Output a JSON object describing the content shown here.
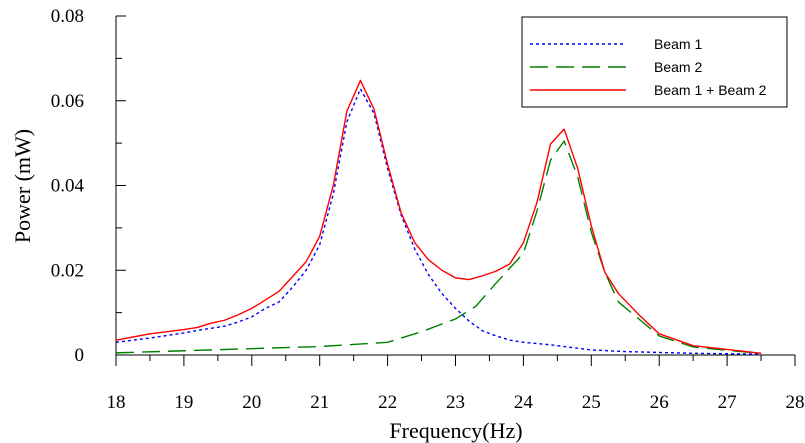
{
  "chart_data": {
    "type": "line",
    "title": "",
    "xlabel": "Frequency(Hz)",
    "ylabel": "Power (mW)",
    "xlim": [
      18,
      28
    ],
    "ylim": [
      0,
      0.08
    ],
    "x_ticks": [
      "18",
      "19",
      "20",
      "21",
      "22",
      "23",
      "24",
      "25",
      "26",
      "27",
      "28"
    ],
    "y_ticks": [
      "0",
      "0.02",
      "0.04",
      "0.06",
      "0.08"
    ],
    "grid": false,
    "legend_position": "top-right",
    "series": [
      {
        "name": "Beam 1",
        "color": "#0000ff",
        "style": "dotted",
        "x": [
          18,
          18.5,
          19,
          19.2,
          19.4,
          19.6,
          19.8,
          20,
          20.2,
          20.4,
          20.6,
          20.8,
          21,
          21.2,
          21.4,
          21.6,
          21.8,
          22,
          22.2,
          22.4,
          22.6,
          22.8,
          23,
          23.2,
          23.4,
          23.6,
          23.8,
          24,
          24.2,
          24.4,
          24.6,
          24.8,
          25,
          25.5,
          26,
          26.5,
          27,
          27.5
        ],
        "y": [
          0.003,
          0.004,
          0.0052,
          0.0058,
          0.0063,
          0.0068,
          0.0078,
          0.009,
          0.011,
          0.0125,
          0.016,
          0.02,
          0.026,
          0.038,
          0.055,
          0.0628,
          0.057,
          0.044,
          0.033,
          0.025,
          0.019,
          0.0145,
          0.011,
          0.008,
          0.0057,
          0.0045,
          0.0035,
          0.003,
          0.0027,
          0.0024,
          0.002,
          0.0016,
          0.0012,
          0.0008,
          0.0006,
          0.0004,
          0.0003,
          0.0002
        ]
      },
      {
        "name": "Beam 2",
        "color": "#008000",
        "style": "dashed",
        "x": [
          18,
          19,
          20,
          21,
          21.5,
          22,
          22.5,
          23,
          23.3,
          23.6,
          23.8,
          24,
          24.2,
          24.4,
          24.6,
          24.8,
          25,
          25.2,
          25.4,
          25.7,
          26,
          26.5,
          27,
          27.5
        ],
        "y": [
          0.0005,
          0.001,
          0.0015,
          0.002,
          0.0025,
          0.003,
          0.0055,
          0.0085,
          0.0115,
          0.017,
          0.0205,
          0.024,
          0.034,
          0.046,
          0.0505,
          0.042,
          0.029,
          0.0195,
          0.0125,
          0.0085,
          0.0045,
          0.0019,
          0.0011,
          0.0004
        ]
      },
      {
        "name": "Beam 1 + Beam 2",
        "color": "#ff0000",
        "style": "solid",
        "x": [
          18,
          18.5,
          19,
          19.2,
          19.4,
          19.6,
          19.8,
          20,
          20.2,
          20.4,
          20.6,
          20.8,
          21,
          21.2,
          21.4,
          21.6,
          21.8,
          22,
          22.2,
          22.4,
          22.6,
          22.8,
          23,
          23.2,
          23.4,
          23.6,
          23.8,
          24,
          24.2,
          24.4,
          24.6,
          24.8,
          25,
          25.2,
          25.4,
          25.7,
          26,
          26.5,
          27,
          27.5
        ],
        "y": [
          0.0035,
          0.005,
          0.006,
          0.0065,
          0.0075,
          0.0082,
          0.0095,
          0.011,
          0.013,
          0.015,
          0.0185,
          0.022,
          0.028,
          0.04,
          0.0575,
          0.0648,
          0.058,
          0.045,
          0.0335,
          0.0265,
          0.0225,
          0.02,
          0.0182,
          0.0178,
          0.0187,
          0.0198,
          0.0215,
          0.0265,
          0.036,
          0.0498,
          0.0533,
          0.044,
          0.0305,
          0.0195,
          0.0145,
          0.0095,
          0.005,
          0.0022,
          0.0013,
          0.0004
        ]
      }
    ]
  }
}
